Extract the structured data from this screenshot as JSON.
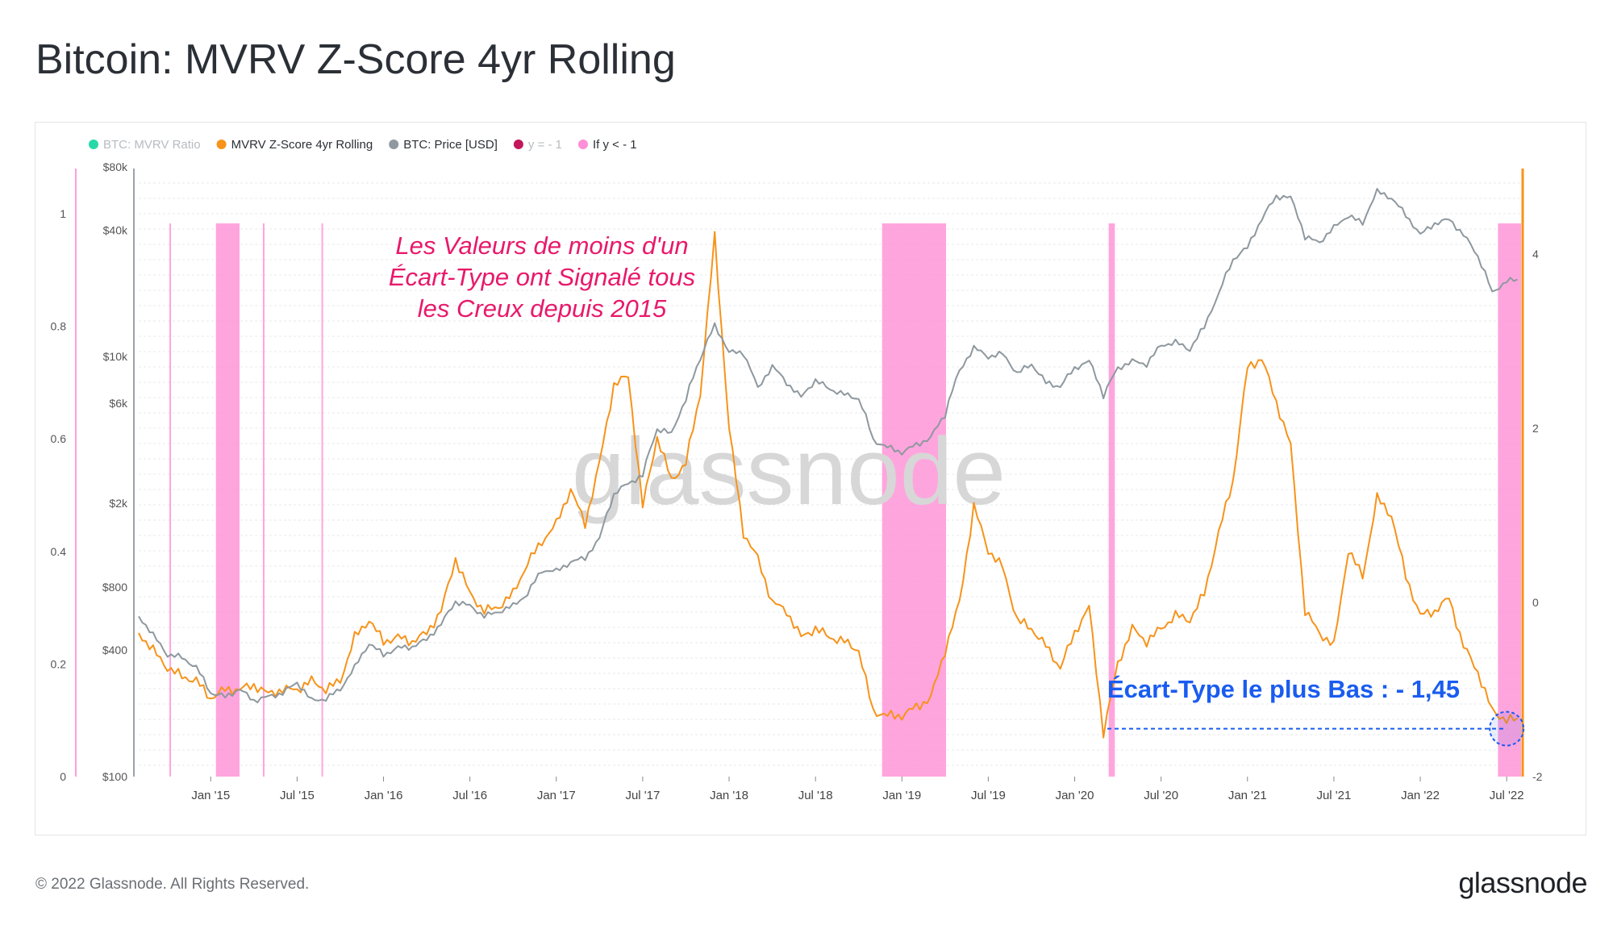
{
  "title": "Bitcoin: MVRV Z-Score 4yr Rolling",
  "footer": {
    "copyright": "© 2022 Glassnode. All Rights Reserved.",
    "logo": "glassnode"
  },
  "watermark": "glassnode",
  "colors": {
    "zscore": "#f7931a",
    "price": "#8e989e",
    "highlight": "#ff8fd6",
    "mvrv_legend": "#27d8a8",
    "yline_legend": "#c2185b",
    "annotation": "#e8196b",
    "low_label": "#1a5cf0"
  },
  "chart_data": {
    "type": "line",
    "title": "Bitcoin: MVRV Z-Score 4yr Rolling",
    "legend_position": "top-left",
    "legend": [
      {
        "name": "BTC: MVRV Ratio",
        "color": "#27d8a8",
        "muted": true
      },
      {
        "name": "MVRV Z-Score 4yr Rolling",
        "color": "#f7931a",
        "muted": false
      },
      {
        "name": "BTC: Price [USD]",
        "color": "#8e989e",
        "muted": false
      },
      {
        "name": "y = - 1",
        "color": "#c2185b",
        "muted": true
      },
      {
        "name": "If y < - 1",
        "color": "#ff8fd6",
        "muted": false
      }
    ],
    "x_ticks": [
      "Jan '15",
      "Jul '15",
      "Jan '16",
      "Jul '16",
      "Jan '17",
      "Jul '17",
      "Jan '18",
      "Jul '18",
      "Jan '19",
      "Jul '19",
      "Jan '20",
      "Jul '20",
      "Jan '21",
      "Jul '21",
      "Jan '22",
      "Jul '22"
    ],
    "x_range": [
      "2014-08",
      "2022-08"
    ],
    "axes": {
      "left_inner": {
        "label": "BTC: MVRV Ratio",
        "ticks": [
          "0",
          "0.2",
          "0.4",
          "0.6",
          "0.8",
          "1"
        ],
        "range": [
          0,
          1
        ]
      },
      "left_price": {
        "label": "BTC: Price [USD]",
        "scale": "log",
        "ticks": [
          "$100",
          "$400",
          "$800",
          "$2k",
          "$6k",
          "$10k",
          "$40k",
          "$80k"
        ],
        "tick_values": [
          100,
          400,
          800,
          2000,
          6000,
          10000,
          40000,
          80000
        ],
        "range": [
          100,
          80000
        ]
      },
      "right": {
        "label": "MVRV Z-Score 4yr Rolling",
        "ticks": [
          "-2",
          "0",
          "2",
          "4"
        ],
        "range": [
          -2,
          5
        ]
      }
    },
    "series": [
      {
        "name": "MVRV Z-Score 4yr Rolling",
        "axis": "right",
        "x": [
          "2014-08",
          "2014-09",
          "2014-10",
          "2014-11",
          "2014-12",
          "2015-01",
          "2015-02",
          "2015-03",
          "2015-04",
          "2015-05",
          "2015-06",
          "2015-07",
          "2015-08",
          "2015-09",
          "2015-10",
          "2015-11",
          "2015-12",
          "2016-01",
          "2016-02",
          "2016-03",
          "2016-04",
          "2016-05",
          "2016-06",
          "2016-07",
          "2016-08",
          "2016-09",
          "2016-10",
          "2016-11",
          "2016-12",
          "2017-01",
          "2017-02",
          "2017-03",
          "2017-04",
          "2017-05",
          "2017-06",
          "2017-07",
          "2017-08",
          "2017-09",
          "2017-10",
          "2017-11",
          "2017-12",
          "2018-01",
          "2018-02",
          "2018-03",
          "2018-04",
          "2018-05",
          "2018-06",
          "2018-07",
          "2018-08",
          "2018-09",
          "2018-10",
          "2018-11",
          "2018-12",
          "2019-01",
          "2019-02",
          "2019-03",
          "2019-04",
          "2019-05",
          "2019-06",
          "2019-07",
          "2019-08",
          "2019-09",
          "2019-10",
          "2019-11",
          "2019-12",
          "2020-01",
          "2020-02",
          "2020-03",
          "2020-04",
          "2020-05",
          "2020-06",
          "2020-07",
          "2020-08",
          "2020-09",
          "2020-10",
          "2020-11",
          "2020-12",
          "2021-01",
          "2021-02",
          "2021-03",
          "2021-04",
          "2021-05",
          "2021-06",
          "2021-07",
          "2021-08",
          "2021-09",
          "2021-10",
          "2021-11",
          "2021-12",
          "2022-01",
          "2022-02",
          "2022-03",
          "2022-04",
          "2022-05",
          "2022-06",
          "2022-07"
        ],
        "values": [
          -0.35,
          -0.55,
          -0.75,
          -0.85,
          -0.9,
          -1.1,
          -1.0,
          -1.0,
          -0.95,
          -1.05,
          -1.0,
          -1.0,
          -0.9,
          -1.0,
          -0.9,
          -0.4,
          -0.2,
          -0.45,
          -0.4,
          -0.45,
          -0.35,
          -0.1,
          0.5,
          0.1,
          -0.1,
          -0.05,
          0.1,
          0.45,
          0.7,
          0.9,
          1.3,
          0.9,
          1.6,
          2.5,
          2.6,
          1.1,
          1.9,
          1.4,
          1.6,
          2.4,
          4.2,
          2.0,
          0.8,
          0.5,
          0.0,
          -0.1,
          -0.4,
          -0.3,
          -0.4,
          -0.45,
          -0.55,
          -1.25,
          -1.3,
          -1.3,
          -1.2,
          -1.1,
          -0.55,
          0.0,
          1.1,
          0.6,
          0.4,
          -0.2,
          -0.3,
          -0.5,
          -0.75,
          -0.35,
          -0.05,
          -1.5,
          -0.7,
          -0.3,
          -0.45,
          -0.3,
          -0.15,
          -0.2,
          0.1,
          0.8,
          1.4,
          2.7,
          2.8,
          2.3,
          1.8,
          -0.1,
          -0.35,
          -0.5,
          0.6,
          0.3,
          1.2,
          1.0,
          0.3,
          -0.15,
          -0.1,
          0.05,
          -0.5,
          -0.8,
          -1.25,
          -1.35
        ]
      },
      {
        "name": "BTC: Price [USD]",
        "axis": "left_price",
        "x": [
          "2014-08",
          "2014-09",
          "2014-10",
          "2014-11",
          "2014-12",
          "2015-01",
          "2015-02",
          "2015-03",
          "2015-04",
          "2015-05",
          "2015-06",
          "2015-07",
          "2015-08",
          "2015-09",
          "2015-10",
          "2015-11",
          "2015-12",
          "2016-01",
          "2016-02",
          "2016-03",
          "2016-04",
          "2016-05",
          "2016-06",
          "2016-07",
          "2016-08",
          "2016-09",
          "2016-10",
          "2016-11",
          "2016-12",
          "2017-01",
          "2017-02",
          "2017-03",
          "2017-04",
          "2017-05",
          "2017-06",
          "2017-07",
          "2017-08",
          "2017-09",
          "2017-10",
          "2017-11",
          "2017-12",
          "2018-01",
          "2018-02",
          "2018-03",
          "2018-04",
          "2018-05",
          "2018-06",
          "2018-07",
          "2018-08",
          "2018-09",
          "2018-10",
          "2018-11",
          "2018-12",
          "2019-01",
          "2019-02",
          "2019-03",
          "2019-04",
          "2019-05",
          "2019-06",
          "2019-07",
          "2019-08",
          "2019-09",
          "2019-10",
          "2019-11",
          "2019-12",
          "2020-01",
          "2020-02",
          "2020-03",
          "2020-04",
          "2020-05",
          "2020-06",
          "2020-07",
          "2020-08",
          "2020-09",
          "2020-10",
          "2020-11",
          "2020-12",
          "2021-01",
          "2021-02",
          "2021-03",
          "2021-04",
          "2021-05",
          "2021-06",
          "2021-07",
          "2021-08",
          "2021-09",
          "2021-10",
          "2021-11",
          "2021-12",
          "2022-01",
          "2022-02",
          "2022-03",
          "2022-04",
          "2022-05",
          "2022-06",
          "2022-07"
        ],
        "values": [
          580,
          470,
          380,
          370,
          330,
          250,
          240,
          260,
          230,
          240,
          250,
          280,
          230,
          235,
          260,
          330,
          430,
          380,
          410,
          415,
          450,
          530,
          680,
          650,
          580,
          610,
          650,
          740,
          960,
          950,
          1050,
          1100,
          1350,
          2200,
          2500,
          2700,
          4500,
          4300,
          6200,
          9800,
          14000,
          10500,
          10400,
          7000,
          9000,
          7500,
          6400,
          7700,
          7000,
          6600,
          6300,
          4000,
          3700,
          3500,
          3800,
          4100,
          5300,
          8500,
          11000,
          10000,
          10300,
          8300,
          9200,
          7500,
          7200,
          8800,
          9500,
          6500,
          8800,
          9500,
          9200,
          11300,
          11700,
          10800,
          13800,
          19700,
          29000,
          33000,
          45000,
          58000,
          57000,
          37000,
          35000,
          41000,
          47000,
          43000,
          61000,
          57000,
          47000,
          38000,
          43000,
          45000,
          38000,
          30000,
          20000,
          23000
        ]
      }
    ],
    "highlight_bands": [
      [
        "2014-10-05",
        "2014-10-08"
      ],
      [
        "2015-01-12",
        "2015-03-01"
      ],
      [
        "2015-04-20",
        "2015-04-23"
      ],
      [
        "2015-08-22",
        "2015-08-25"
      ],
      [
        "2018-11-20",
        "2019-04-03"
      ],
      [
        "2020-03-12",
        "2020-03-25"
      ],
      [
        "2022-06-13",
        "2022-08-01"
      ]
    ],
    "annotations": [
      {
        "lines": [
          "Les Valeurs de moins d'un",
          "Écart-Type ont Signalé tous",
          "les Creux depuis 2015"
        ]
      },
      {
        "text": "Écart-Type le plus Bas : - 1,45",
        "value": -1.45,
        "x": "2022-07"
      }
    ]
  }
}
